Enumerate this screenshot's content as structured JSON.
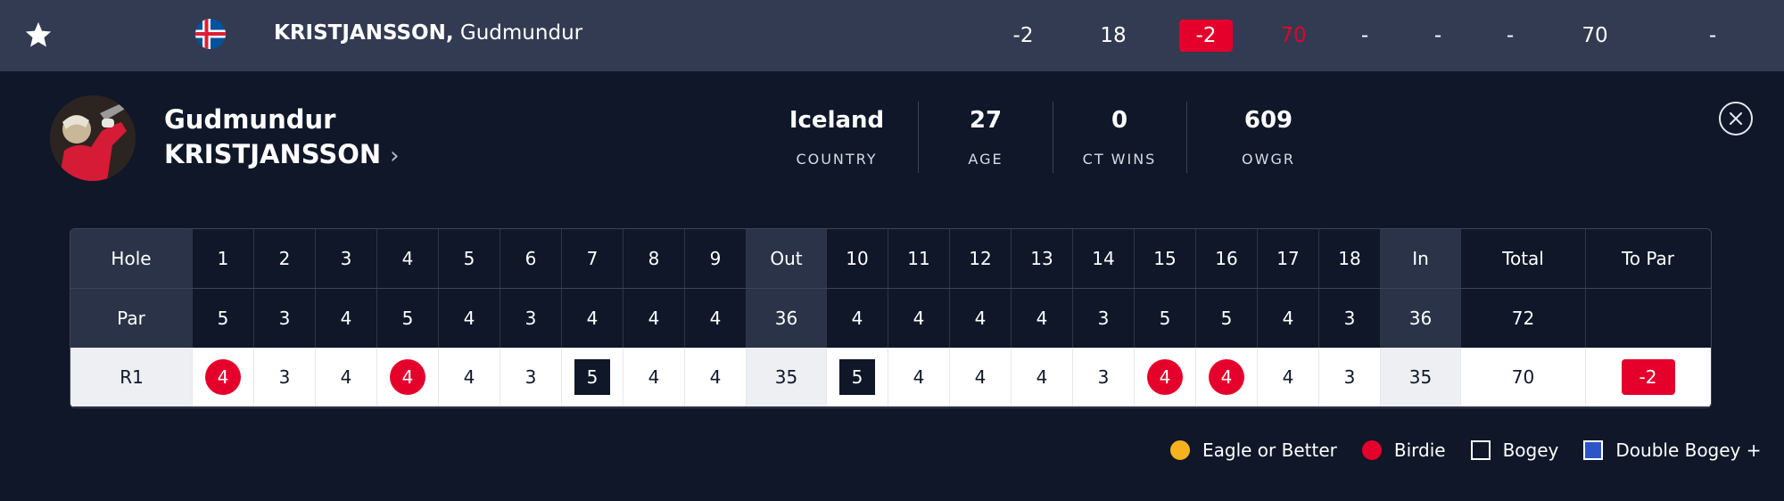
{
  "leaderboard_row": {
    "position": "-2",
    "thru": "18",
    "today": "-2",
    "r1": "70",
    "r2": "-",
    "r3": "-",
    "r4": "-",
    "total": "70",
    "points": "-",
    "last_name": "KRISTJANSSON,",
    "first_name": "Gudmundur",
    "flag": "iceland-flag-icon"
  },
  "player": {
    "first_name": "Gudmundur",
    "last_name": "KRISTJANSSON",
    "chevron": "›",
    "stats": [
      {
        "value": "Iceland",
        "label": "COUNTRY"
      },
      {
        "value": "27",
        "label": "AGE"
      },
      {
        "value": "0",
        "label": "CT WINS"
      },
      {
        "value": "609",
        "label": "OWGR"
      }
    ]
  },
  "scorecard": {
    "header": {
      "label": "Hole",
      "front": [
        "1",
        "2",
        "3",
        "4",
        "5",
        "6",
        "7",
        "8",
        "9"
      ],
      "out": "Out",
      "back": [
        "10",
        "11",
        "12",
        "13",
        "14",
        "15",
        "16",
        "17",
        "18"
      ],
      "in": "In",
      "total": "Total",
      "to_par": "To Par"
    },
    "par": {
      "label": "Par",
      "front": [
        "5",
        "3",
        "4",
        "5",
        "4",
        "3",
        "4",
        "4",
        "4"
      ],
      "out": "36",
      "back": [
        "4",
        "4",
        "4",
        "4",
        "3",
        "5",
        "5",
        "4",
        "3"
      ],
      "in": "36",
      "total": "72",
      "to_par": ""
    },
    "round": {
      "label": "R1",
      "front": [
        "4",
        "3",
        "4",
        "4",
        "4",
        "3",
        "5",
        "4",
        "4"
      ],
      "front_marks": [
        "birdie",
        "",
        "",
        "birdie",
        "",
        "",
        "bogey",
        "",
        ""
      ],
      "out": "35",
      "back": [
        "5",
        "4",
        "4",
        "4",
        "3",
        "4",
        "4",
        "4",
        "3"
      ],
      "back_marks": [
        "bogey",
        "",
        "",
        "",
        "",
        "birdie",
        "birdie",
        "",
        ""
      ],
      "in": "35",
      "total": "70",
      "to_par": "-2"
    }
  },
  "legend": [
    {
      "label": "Eagle or Better",
      "type": "eagle",
      "color": "#f5b21e"
    },
    {
      "label": "Birdie",
      "type": "birdie",
      "color": "#e4002b"
    },
    {
      "label": "Bogey",
      "type": "bogey",
      "color": "#0f1729"
    },
    {
      "label": "Double Bogey +",
      "type": "dbogey",
      "color": "#2d55c8"
    }
  ],
  "colors": {
    "background": "#0f1729",
    "row_bar": "#323b51",
    "accent_red": "#e4002b"
  }
}
